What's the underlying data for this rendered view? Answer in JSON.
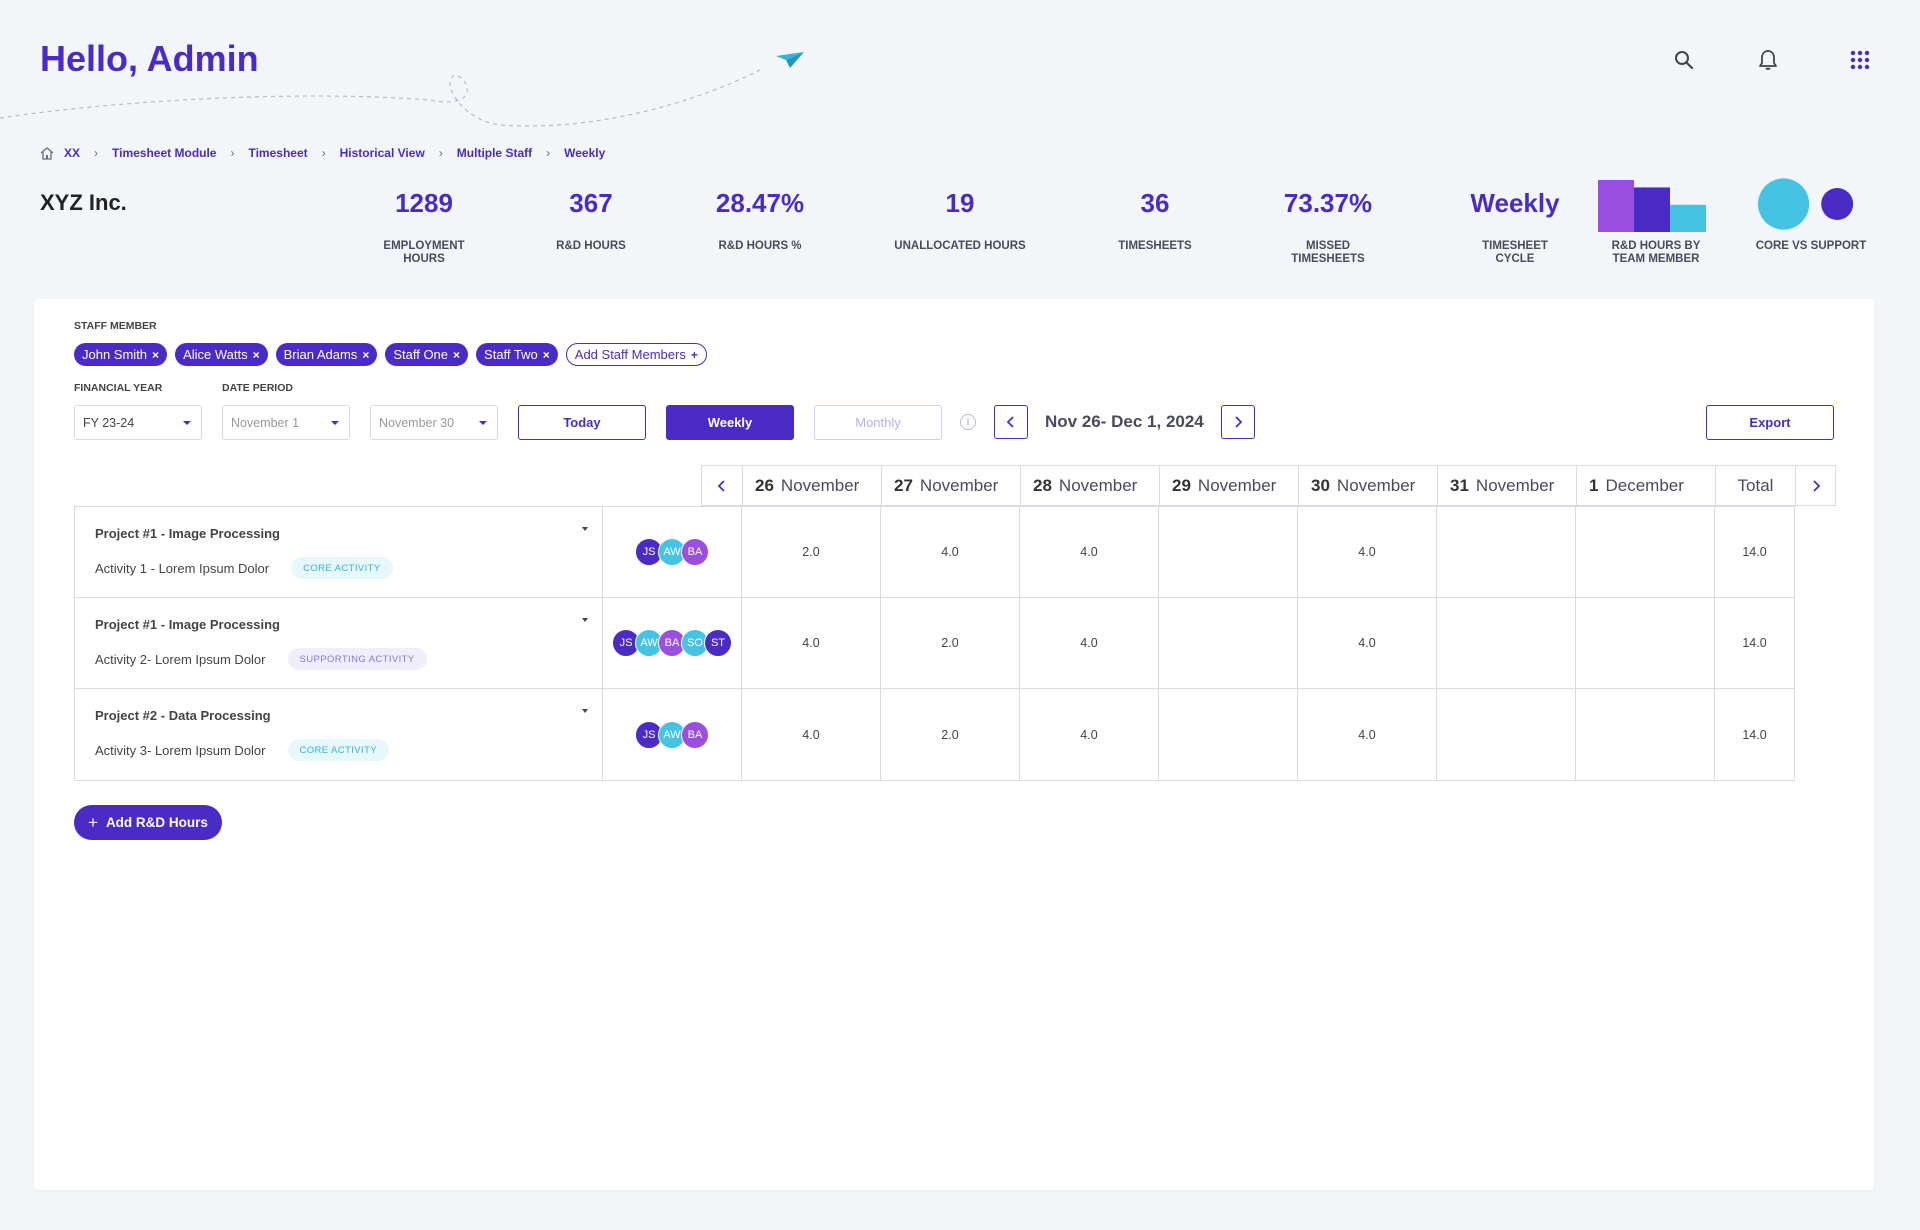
{
  "header": {
    "greeting": "Hello, Admin"
  },
  "breadcrumb": [
    "XX",
    "Timesheet Module",
    "Timesheet",
    "Historical View",
    "Multiple Staff",
    "Weekly"
  ],
  "company": "XYZ Inc.",
  "stats": [
    {
      "value": "1289",
      "label": "EMPLOYMENT HOURS"
    },
    {
      "value": "367",
      "label": "R&D HOURS"
    },
    {
      "value": "28.47%",
      "label": "R&D HOURS %"
    },
    {
      "value": "19",
      "label": "UNALLOCATED HOURS"
    },
    {
      "value": "36",
      "label": "TIMESHEETS"
    },
    {
      "value": "73.37%",
      "label": "MISSED TIMESHEETS"
    },
    {
      "value": "Weekly",
      "label": "TIMESHEET CYCLE"
    }
  ],
  "mini_charts": {
    "team_label": "R&D HOURS BY TEAM MEMBER",
    "core_label": "CORE VS SUPPORT"
  },
  "chart_data": [
    {
      "type": "bar",
      "categories": [
        "",
        "",
        ""
      ],
      "values": [
        42,
        36,
        22
      ],
      "colors": [
        "#9b4fe0",
        "#4a2bc6",
        "#45c3e3"
      ]
    },
    {
      "type": "scatter",
      "values": [
        1.6,
        1
      ],
      "colors": [
        "#45c3e3",
        "#4a2bc6"
      ]
    }
  ],
  "filters": {
    "staff_label": "STAFF MEMBER",
    "staff": [
      "John Smith",
      "Alice Watts",
      "Brian Adams",
      "Staff One",
      "Staff Two"
    ],
    "add_staff": "Add Staff Members",
    "fy_label": "FINANCIAL YEAR",
    "period_label": "DATE PERIOD",
    "fy_value": "FY 23-24",
    "period_start": "November 1",
    "period_end": "November 30",
    "today": "Today",
    "weekly": "Weekly",
    "monthly": "Monthly",
    "range": "Nov 26- Dec 1, 2024",
    "export": "Export"
  },
  "days": [
    {
      "num": "26",
      "month": "November"
    },
    {
      "num": "27",
      "month": "November"
    },
    {
      "num": "28",
      "month": "November"
    },
    {
      "num": "29",
      "month": "November"
    },
    {
      "num": "30",
      "month": "November"
    },
    {
      "num": "31",
      "month": "November"
    },
    {
      "num": "1",
      "month": "December"
    }
  ],
  "total_label": "Total",
  "rows": [
    {
      "project": "Project #1 - Image Processing",
      "activity": "Activity 1 - Lorem Ipsum Dolor",
      "badge": "CORE ACTIVITY",
      "badge_type": "core",
      "avatars": [
        {
          "initials": "JS",
          "color": "#4a2bc6"
        },
        {
          "initials": "AW",
          "color": "#45c3e3"
        },
        {
          "initials": "BA",
          "color": "#9b4fe0"
        }
      ],
      "hours": [
        "2.0",
        "4.0",
        "4.0",
        "",
        "4.0",
        "",
        ""
      ],
      "total": "14.0"
    },
    {
      "project": "Project #1 - Image Processing",
      "activity": "Activity 2- Lorem Ipsum Dolor",
      "badge": "SUPPORTING ACTIVITY",
      "badge_type": "support",
      "avatars": [
        {
          "initials": "JS",
          "color": "#4a2bc6"
        },
        {
          "initials": "AW",
          "color": "#45c3e3"
        },
        {
          "initials": "BA",
          "color": "#9b4fe0"
        },
        {
          "initials": "SO",
          "color": "#45c3e3"
        },
        {
          "initials": "ST",
          "color": "#4a2bc6"
        }
      ],
      "hours": [
        "4.0",
        "2.0",
        "4.0",
        "",
        "4.0",
        "",
        ""
      ],
      "total": "14.0"
    },
    {
      "project": "Project #2 - Data Processing",
      "activity": "Activity 3- Lorem Ipsum Dolor",
      "badge": "CORE ACTIVITY",
      "badge_type": "core",
      "avatars": [
        {
          "initials": "JS",
          "color": "#4a2bc6"
        },
        {
          "initials": "AW",
          "color": "#45c3e3"
        },
        {
          "initials": "BA",
          "color": "#9b4fe0"
        }
      ],
      "hours": [
        "4.0",
        "2.0",
        "4.0",
        "",
        "4.0",
        "",
        ""
      ],
      "total": "14.0"
    }
  ],
  "add_hours": "Add R&D Hours",
  "icons": {
    "search": "search-icon",
    "bell": "bell-icon",
    "apps": "apps-grid-icon",
    "home": "home-icon"
  }
}
